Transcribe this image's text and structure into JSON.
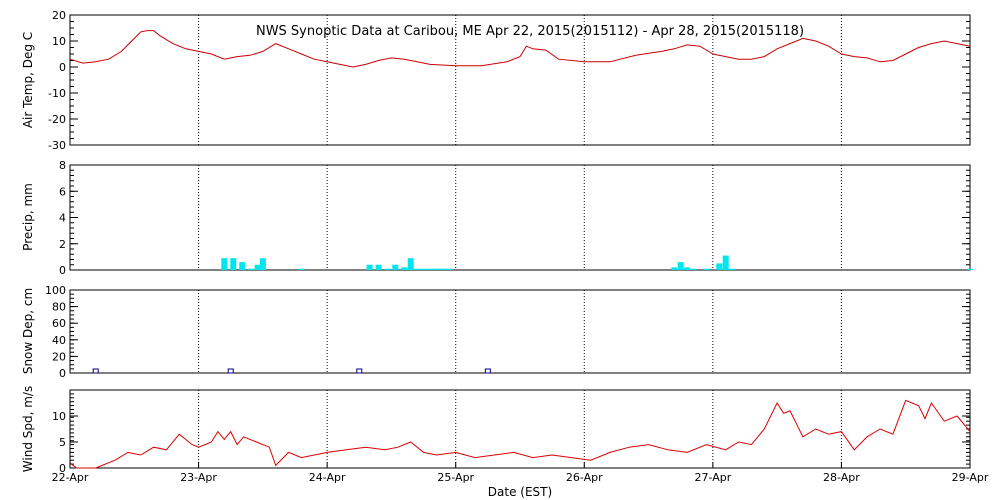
{
  "chart_data": {
    "type": "multi-panel time series",
    "title": "NWS Synoptic Data at Caribou, ME   Apr 22, 2015(2015112) - Apr 28, 2015(2015118)",
    "xlabel": "Date (EST)",
    "x_ticks": [
      "22-Apr",
      "23-Apr",
      "24-Apr",
      "25-Apr",
      "26-Apr",
      "27-Apr",
      "28-Apr",
      "29-Apr"
    ],
    "x_range_days": [
      0,
      7
    ],
    "vertical_grid": "dotted at each day",
    "colors": {
      "temp": "#cc0000",
      "precip": "#00e5ee",
      "snow": "#000080",
      "wind": "#dd0000"
    },
    "panels": [
      {
        "name": "temp",
        "type": "line",
        "ylabel": "Air Temp, Deg C",
        "ylim": [
          -30,
          20
        ],
        "yticks": [
          -30,
          -20,
          -10,
          0,
          10,
          20
        ],
        "x_days": [
          0,
          0.1,
          0.2,
          0.3,
          0.4,
          0.5,
          0.55,
          0.6,
          0.65,
          0.7,
          0.8,
          0.9,
          1.0,
          1.1,
          1.2,
          1.3,
          1.4,
          1.5,
          1.6,
          1.7,
          1.8,
          1.9,
          2.0,
          2.1,
          2.2,
          2.3,
          2.4,
          2.5,
          2.6,
          2.7,
          2.8,
          3.0,
          3.2,
          3.4,
          3.5,
          3.55,
          3.6,
          3.7,
          3.8,
          4.0,
          4.2,
          4.4,
          4.6,
          4.7,
          4.8,
          4.9,
          5.0,
          5.1,
          5.2,
          5.3,
          5.4,
          5.5,
          5.6,
          5.7,
          5.8,
          5.9,
          6.0,
          6.1,
          6.2,
          6.3,
          6.4,
          6.5,
          6.6,
          6.7,
          6.8,
          6.9,
          7.0
        ],
        "values": [
          3,
          1.5,
          2,
          3,
          6,
          11,
          13.5,
          14,
          14,
          12,
          9,
          7,
          6,
          5,
          3,
          4,
          4.5,
          6,
          9,
          7,
          5,
          3,
          2,
          1,
          0,
          1,
          2.5,
          3.5,
          3,
          2,
          1,
          0.5,
          0.5,
          2,
          4,
          8,
          7,
          6.5,
          3,
          2,
          2,
          4.5,
          6,
          7,
          8.5,
          8,
          5,
          4,
          3,
          3,
          4,
          7,
          9,
          11,
          10,
          8,
          5,
          4,
          3.5,
          2,
          2.5,
          5,
          7.5,
          9,
          10,
          9,
          8
        ]
      },
      {
        "name": "precip",
        "type": "bar",
        "ylabel": "Precip, mm",
        "ylim": [
          0,
          8
        ],
        "yticks": [
          0,
          2,
          4,
          6,
          8
        ],
        "x_days": [
          1.2,
          1.27,
          1.34,
          1.41,
          1.46,
          1.5,
          1.8,
          2.33,
          2.4,
          2.47,
          2.53,
          2.6,
          2.65,
          2.7,
          2.75,
          2.8,
          2.85,
          2.9,
          2.95,
          4.7,
          4.75,
          4.8,
          4.85,
          4.95,
          5.05,
          5.1,
          5.15,
          7.0
        ],
        "values": [
          0.9,
          0.9,
          0.6,
          0.1,
          0.4,
          0.9,
          0.1,
          0.4,
          0.4,
          0.1,
          0.4,
          0.2,
          0.9,
          0.1,
          0.1,
          0.1,
          0.1,
          0.1,
          0.1,
          0.2,
          0.6,
          0.2,
          0.1,
          0.1,
          0.5,
          1.1,
          0.1,
          0.1
        ]
      },
      {
        "name": "snow",
        "type": "scatter",
        "ylabel": "Snow Dep, cm",
        "ylim": [
          0,
          100
        ],
        "yticks": [
          0,
          20,
          40,
          60,
          80,
          100
        ],
        "x_days": [
          0.2,
          1.25,
          2.25,
          3.25
        ],
        "values": [
          0,
          0,
          0,
          0
        ]
      },
      {
        "name": "wind",
        "type": "line",
        "ylabel": "Wind Spd, m/s",
        "ylim": [
          0,
          15
        ],
        "yticks": [
          0,
          5,
          10
        ],
        "x_days": [
          0,
          0.05,
          0.1,
          0.2,
          0.35,
          0.45,
          0.55,
          0.65,
          0.75,
          0.85,
          0.95,
          1.0,
          1.05,
          1.1,
          1.15,
          1.2,
          1.25,
          1.3,
          1.35,
          1.45,
          1.55,
          1.6,
          1.7,
          1.8,
          1.9,
          2.0,
          2.15,
          2.3,
          2.45,
          2.55,
          2.65,
          2.75,
          2.85,
          3.0,
          3.15,
          3.3,
          3.45,
          3.6,
          3.75,
          3.9,
          4.05,
          4.2,
          4.35,
          4.5,
          4.65,
          4.8,
          4.95,
          5.1,
          5.2,
          5.3,
          5.4,
          5.5,
          5.55,
          5.6,
          5.7,
          5.8,
          5.9,
          6.0,
          6.1,
          6.2,
          6.3,
          6.4,
          6.5,
          6.6,
          6.65,
          6.7,
          6.8,
          6.9,
          7.0
        ],
        "values": [
          1,
          0,
          0,
          0,
          1.5,
          3,
          2.5,
          4,
          3.5,
          6.5,
          4.5,
          4,
          4.5,
          5,
          7,
          5.5,
          7,
          4.5,
          6,
          5,
          4,
          0.5,
          3,
          2,
          2.5,
          3,
          3.5,
          4,
          3.5,
          4,
          5,
          3,
          2.5,
          3,
          2,
          2.5,
          3,
          2,
          2.5,
          2,
          1.5,
          3,
          4,
          4.5,
          3.5,
          3,
          4.5,
          3.5,
          5,
          4.5,
          7.5,
          12.5,
          10.5,
          11,
          6,
          7.5,
          6.5,
          7,
          3.5,
          6,
          7.5,
          6.5,
          13,
          12,
          9.5,
          12.5,
          9,
          10,
          7
        ]
      }
    ]
  }
}
